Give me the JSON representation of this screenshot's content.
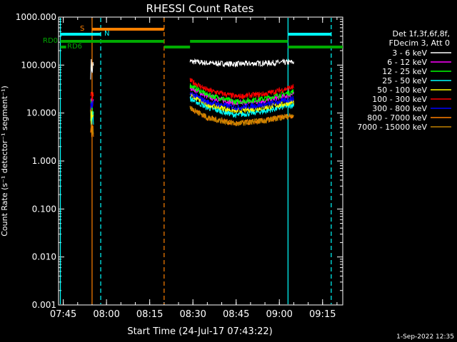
{
  "chart_data": {
    "type": "line",
    "title": "RHESSI Count Rates",
    "xlabel": "Start Time (24-Jul-17 07:43:22)",
    "ylabel": "Count Rate (s⁻¹ detector⁻¹ segment⁻¹)",
    "yscale": "log",
    "ylim": [
      0.001,
      1000
    ],
    "xlim": [
      "07:43:22",
      "09:22:00"
    ],
    "x_ticks": [
      "07:45",
      "08:00",
      "08:15",
      "08:30",
      "08:45",
      "09:00",
      "09:15"
    ],
    "y_ticks": [
      "0.001",
      "0.010",
      "0.100",
      "1.000",
      "10.000",
      "100.000",
      "1000.000"
    ],
    "legend_header": [
      "Det 1f,3f,6f,8f,",
      "FDecim 3, Att 0"
    ],
    "series": [
      {
        "name": "3 - 6 keV",
        "color": "#ffffff",
        "x": [
          "07:55",
          "08:29",
          "08:35",
          "08:45",
          "08:55",
          "09:05"
        ],
        "values": [
          100,
          120,
          110,
          105,
          110,
          115
        ]
      },
      {
        "name": "6 - 12 keV",
        "color": "#ff00ff",
        "x": [
          "07:55",
          "08:29",
          "08:35",
          "08:45",
          "08:55",
          "09:05"
        ],
        "values": [
          15,
          35,
          22,
          16,
          18,
          25
        ]
      },
      {
        "name": "12 - 25 keV",
        "color": "#00ff00",
        "x": [
          "07:55",
          "08:29",
          "08:35",
          "08:45",
          "08:55",
          "09:05"
        ],
        "values": [
          14,
          38,
          24,
          17,
          20,
          28
        ]
      },
      {
        "name": "25 - 50 keV",
        "color": "#00ffff",
        "x": [
          "07:55",
          "08:29",
          "08:35",
          "08:45",
          "08:55",
          "09:05"
        ],
        "values": [
          10,
          20,
          13,
          9,
          11,
          15
        ]
      },
      {
        "name": "50 - 100 keV",
        "color": "#ffff00",
        "x": [
          "07:55",
          "08:29",
          "08:35",
          "08:45",
          "08:55",
          "09:05"
        ],
        "values": [
          11,
          24,
          15,
          11,
          13,
          17
        ]
      },
      {
        "name": "100 - 300 keV",
        "color": "#ff0000",
        "x": [
          "07:55",
          "08:29",
          "08:35",
          "08:45",
          "08:55",
          "09:05"
        ],
        "values": [
          20,
          48,
          30,
          22,
          25,
          35
        ]
      },
      {
        "name": "300 - 800 keV",
        "color": "#0000ff",
        "x": [
          "07:55",
          "08:29",
          "08:35",
          "08:45",
          "08:55",
          "09:05"
        ],
        "values": [
          13,
          26,
          17,
          13,
          15,
          20
        ]
      },
      {
        "name": "800 - 7000 keV",
        "color": "#ff8000",
        "x": [
          "07:55",
          "08:29",
          "08:35",
          "08:45",
          "08:55",
          "09:05"
        ],
        "values": [
          5,
          13,
          8,
          6,
          7,
          9
        ]
      },
      {
        "name": "7000 - 15000 keV",
        "color": "#c08000",
        "x": [
          "07:55",
          "08:29",
          "08:35",
          "08:45",
          "08:55",
          "09:05"
        ],
        "values": [
          5,
          13,
          8,
          6,
          7,
          9
        ]
      }
    ],
    "annotations": {
      "S": {
        "label": "S",
        "color": "#ff8000"
      },
      "N": {
        "label": "N",
        "color": "#00ffff"
      },
      "RD0": {
        "label": "RD0",
        "color": "#00aa00"
      },
      "RD6": {
        "label": "RD6",
        "color": "#00aa00"
      }
    },
    "vertical_markers": [
      {
        "x": "07:44",
        "color": "#00ffff",
        "style": "solid"
      },
      {
        "x": "07:55",
        "color": "#ff8000",
        "style": "solid"
      },
      {
        "x": "07:58",
        "color": "#00ffff",
        "style": "dashed"
      },
      {
        "x": "08:20",
        "color": "#ff8000",
        "style": "dashed"
      },
      {
        "x": "09:03",
        "color": "#00ffff",
        "style": "solid"
      },
      {
        "x": "09:18",
        "color": "#00ffff",
        "style": "dashed"
      }
    ]
  },
  "footer": {
    "timestamp": "1-Sep-2022 12:35"
  }
}
